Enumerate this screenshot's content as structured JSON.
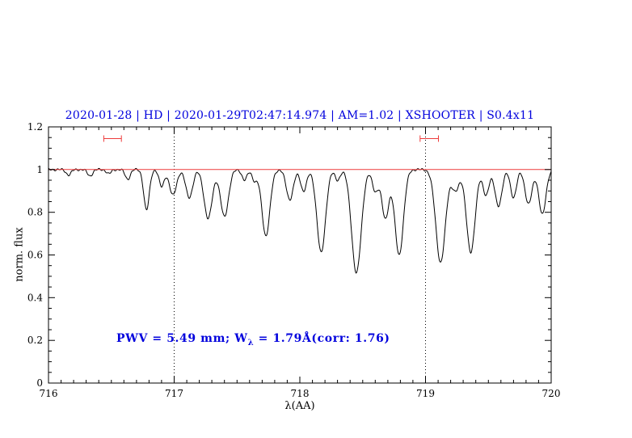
{
  "colors": {
    "title": "#0000dd",
    "annotation": "#0000dd",
    "spectrum": "#000000",
    "reference": "#ee3b3b",
    "axis": "#000000",
    "background": "#ffffff"
  },
  "annotation": {
    "part1": "PWV = 5.49 mm; W",
    "sub": "λ",
    "part2": " = 1.79Å(corr: 1.76)"
  },
  "chart_data": {
    "type": "line",
    "title": "2020-01-28 | HD | 2020-01-29T02:47:14.974 | AM=1.02 | XSHOOTER | S0.4x11",
    "xlabel": "λ(AA)",
    "ylabel": "norm. flux",
    "xlim": [
      716,
      720
    ],
    "ylim": [
      0,
      1.2
    ],
    "x_ticks": [
      716,
      717,
      718,
      719,
      720
    ],
    "x_tick_labels": [
      "716",
      "717",
      "718",
      "719",
      "720"
    ],
    "y_ticks": [
      0,
      0.2,
      0.4,
      0.6,
      0.8,
      1.0,
      1.2
    ],
    "y_tick_labels": [
      "0",
      "0.2",
      "0.4",
      "0.6",
      "0.8",
      "1",
      "1.2"
    ],
    "x_minor_step": 0.1,
    "y_minor_step": 0.05,
    "continuum": 1.0,
    "reference_line_y": 1.0,
    "vlines": [
      717,
      719
    ],
    "markers": [
      {
        "x": 716.51,
        "y": 1.145,
        "halfwidth": 0.07
      },
      {
        "x": 719.03,
        "y": 1.145,
        "halfwidth": 0.073
      }
    ],
    "absorption_lines": [
      [
        716.16,
        0.025,
        0.02
      ],
      [
        716.33,
        0.03,
        0.02
      ],
      [
        716.48,
        0.02,
        0.018
      ],
      [
        716.63,
        0.045,
        0.02
      ],
      [
        716.78,
        0.19,
        0.022
      ],
      [
        716.9,
        0.08,
        0.02
      ],
      [
        716.99,
        0.12,
        0.028
      ],
      [
        717.12,
        0.13,
        0.028
      ],
      [
        717.27,
        0.23,
        0.032
      ],
      [
        717.4,
        0.22,
        0.032
      ],
      [
        717.56,
        0.05,
        0.02
      ],
      [
        717.64,
        0.05,
        0.02
      ],
      [
        717.73,
        0.31,
        0.032
      ],
      [
        717.92,
        0.14,
        0.028
      ],
      [
        718.03,
        0.1,
        0.024
      ],
      [
        718.17,
        0.39,
        0.034
      ],
      [
        718.3,
        0.05,
        0.02
      ],
      [
        718.45,
        0.485,
        0.038
      ],
      [
        718.6,
        0.1,
        0.024
      ],
      [
        718.68,
        0.23,
        0.028
      ],
      [
        718.79,
        0.4,
        0.034
      ],
      [
        719.12,
        0.435,
        0.038
      ],
      [
        719.24,
        0.1,
        0.028
      ],
      [
        719.36,
        0.39,
        0.034
      ],
      [
        719.48,
        0.12,
        0.024
      ],
      [
        719.58,
        0.17,
        0.028
      ],
      [
        719.7,
        0.13,
        0.024
      ],
      [
        719.82,
        0.16,
        0.028
      ],
      [
        719.93,
        0.21,
        0.028
      ]
    ]
  }
}
